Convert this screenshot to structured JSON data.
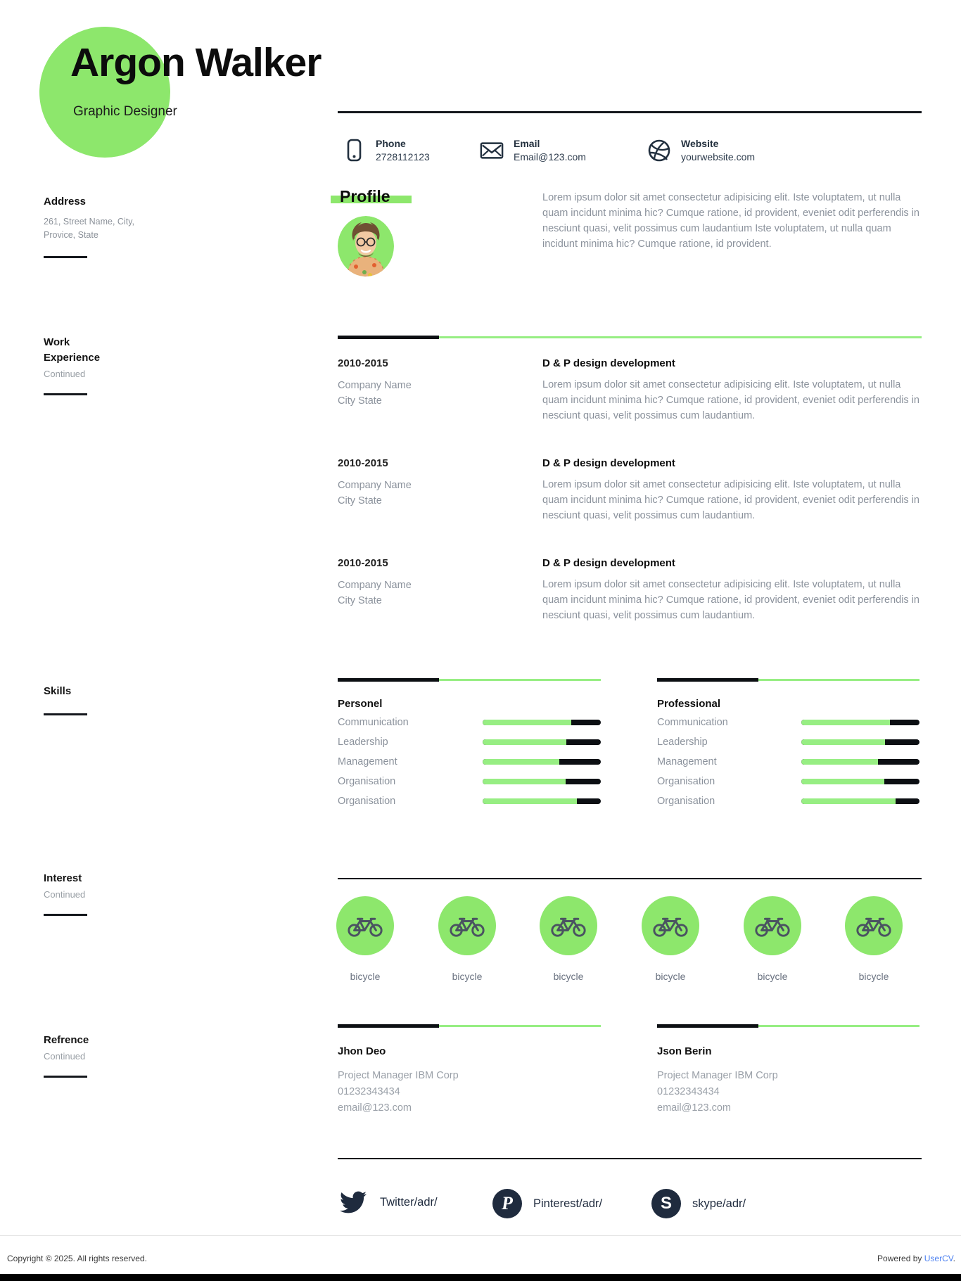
{
  "colors": {
    "accent_green": "#8de76c",
    "bar_green": "#97ee83",
    "navy": "#1f2b3e",
    "gray_text": "#8b929c",
    "link_blue": "#4a7ff0"
  },
  "header": {
    "name": "Argon Walker",
    "role": "Graphic Designer"
  },
  "contact": {
    "items": [
      {
        "icon": "phone-icon",
        "label": "Phone",
        "value": "2728112123"
      },
      {
        "icon": "email-icon",
        "label": "Email",
        "value": "Email@123.com"
      },
      {
        "icon": "website-icon",
        "label": "Website",
        "value": "yourwebsite.com"
      }
    ]
  },
  "sidebar": {
    "address": {
      "title": "Address",
      "line1": "261, Street Name, City,",
      "line2": "Provice, State"
    },
    "work": {
      "title_line1": "Work",
      "title_line2": "Experience",
      "note": "Continued"
    },
    "skills": {
      "title": "Skills"
    },
    "interest": {
      "title": "Interest",
      "note": "Continued"
    },
    "reference": {
      "title": "Refrence",
      "note": "Continued"
    }
  },
  "profile": {
    "heading": "Profile",
    "text": "Lorem ipsum dolor sit amet consectetur adipisicing elit. Iste voluptatem, ut nulla quam incidunt minima hic? Cumque ratione, id provident, eveniet odit perferendis in nesciunt quasi, velit possimus cum laudantium Iste voluptatem, ut nulla quam incidunt minima hic? Cumque ratione, id provident.",
    "photo_alt": "profile-photo"
  },
  "work": {
    "entries": [
      {
        "period": "2010-2015",
        "company": "Company Name",
        "city": "City State",
        "title": "D & P design development",
        "description": "Lorem ipsum dolor sit amet consectetur adipisicing elit. Iste voluptatem, ut nulla quam incidunt minima hic? Cumque ratione, id provident, eveniet odit perferendis in nesciunt quasi, velit possimus cum laudantium."
      },
      {
        "period": "2010-2015",
        "company": "Company Name",
        "city": "City State",
        "title": "D & P design development",
        "description": "Lorem ipsum dolor sit amet consectetur adipisicing elit. Iste voluptatem, ut nulla quam incidunt minima hic? Cumque ratione, id provident, eveniet odit perferendis in nesciunt quasi, velit possimus cum laudantium."
      },
      {
        "period": "2010-2015",
        "company": "Company Name",
        "city": "City State",
        "title": "D & P design development",
        "description": "Lorem ipsum dolor sit amet consectetur adipisicing elit. Iste voluptatem, ut nulla quam incidunt minima hic? Cumque ratione, id provident, eveniet odit perferendis in nesciunt quasi, velit possimus cum laudantium."
      }
    ]
  },
  "skills": {
    "columns": [
      {
        "heading": "Personel",
        "items": [
          {
            "name": "Communication",
            "value": 75
          },
          {
            "name": "Leadership",
            "value": 71
          },
          {
            "name": "Management",
            "value": 65
          },
          {
            "name": "Organisation",
            "value": 70
          },
          {
            "name": "Organisation",
            "value": 80
          }
        ]
      },
      {
        "heading": "Professional",
        "items": [
          {
            "name": "Communication",
            "value": 75
          },
          {
            "name": "Leadership",
            "value": 71
          },
          {
            "name": "Management",
            "value": 65
          },
          {
            "name": "Organisation",
            "value": 70
          },
          {
            "name": "Organisation",
            "value": 80
          }
        ]
      }
    ]
  },
  "interests": {
    "items": [
      {
        "icon": "bicycle-icon",
        "label": "bicycle"
      },
      {
        "icon": "bicycle-icon",
        "label": "bicycle"
      },
      {
        "icon": "bicycle-icon",
        "label": "bicycle"
      },
      {
        "icon": "bicycle-icon",
        "label": "bicycle"
      },
      {
        "icon": "bicycle-icon",
        "label": "bicycle"
      },
      {
        "icon": "bicycle-icon",
        "label": "bicycle"
      }
    ]
  },
  "references": [
    {
      "name": "Jhon Deo",
      "role": "Project Manager IBM Corp",
      "phone": "01232343434",
      "email": "email@123.com"
    },
    {
      "name": "Json Berin",
      "role": "Project Manager IBM Corp",
      "phone": "01232343434",
      "email": "email@123.com"
    }
  ],
  "social": [
    {
      "icon": "twitter-icon",
      "label": "Twitter/adr/"
    },
    {
      "icon": "pinterest-icon",
      "label": "Pinterest/adr/",
      "badge_letter": "P"
    },
    {
      "icon": "skype-icon",
      "label": "skype/adr/",
      "badge_letter": "S"
    }
  ],
  "footer": {
    "copyright": "Copyright © 2025. All rights reserved.",
    "powered_prefix": "Powered by ",
    "brand": "UserCV",
    "suffix": "."
  }
}
